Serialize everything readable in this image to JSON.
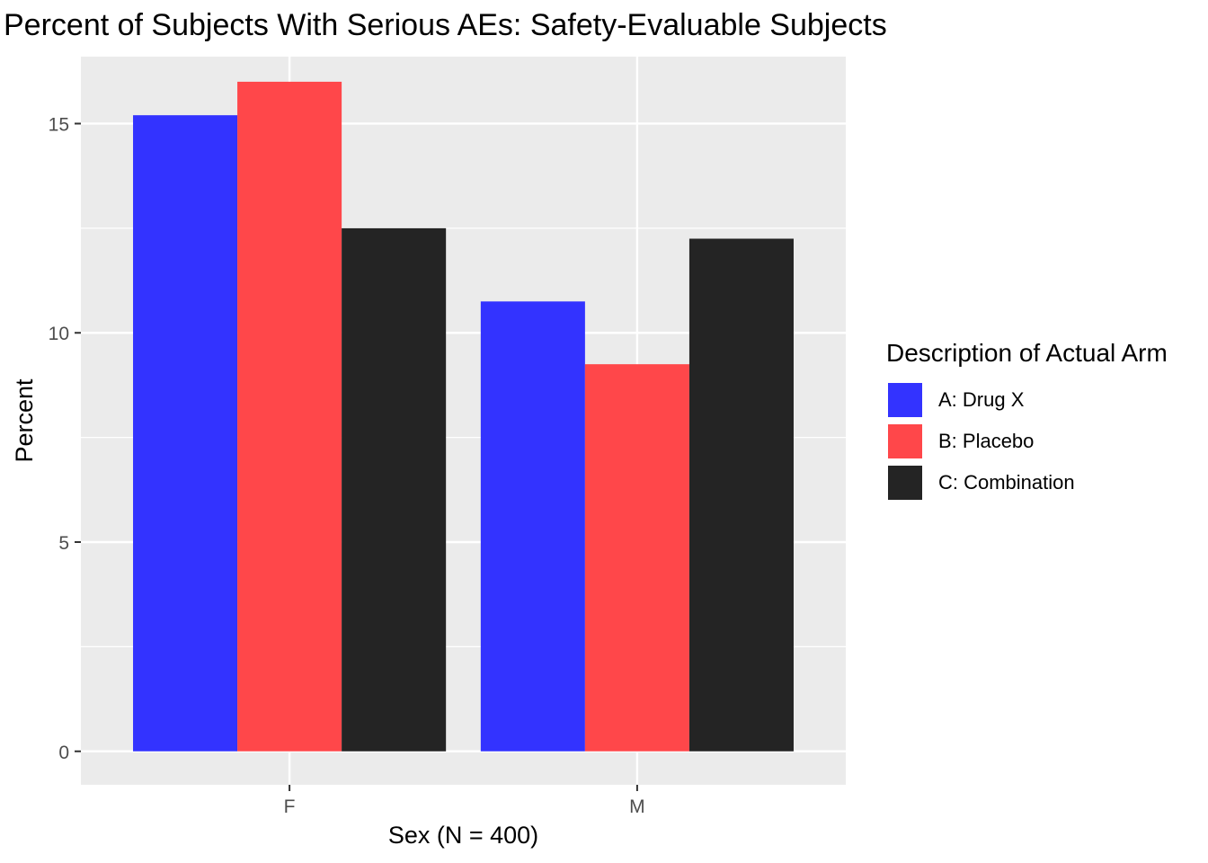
{
  "chart_data": {
    "type": "bar",
    "title": "Percent of Subjects With Serious AEs: Safety-Evaluable Subjects",
    "xlabel": "Sex (N = 400)",
    "ylabel": "Percent",
    "categories": [
      "F",
      "M"
    ],
    "series": [
      {
        "name": "A: Drug X",
        "color": "#3333ff",
        "values": [
          15.2,
          10.75
        ]
      },
      {
        "name": "B: Placebo",
        "color": "#ff474a",
        "values": [
          16.0,
          9.25
        ]
      },
      {
        "name": "C: Combination",
        "color": "#242424",
        "values": [
          12.5,
          12.25
        ]
      }
    ],
    "ylim": [
      -0.8,
      16.6
    ],
    "yticks": [
      0,
      5,
      10,
      15
    ],
    "ytick_labels": [
      "0",
      "5",
      "10",
      "15"
    ],
    "grid": true,
    "background": "#ebebeb",
    "legend": {
      "title": "Description of Actual Arm",
      "position": "right"
    }
  }
}
